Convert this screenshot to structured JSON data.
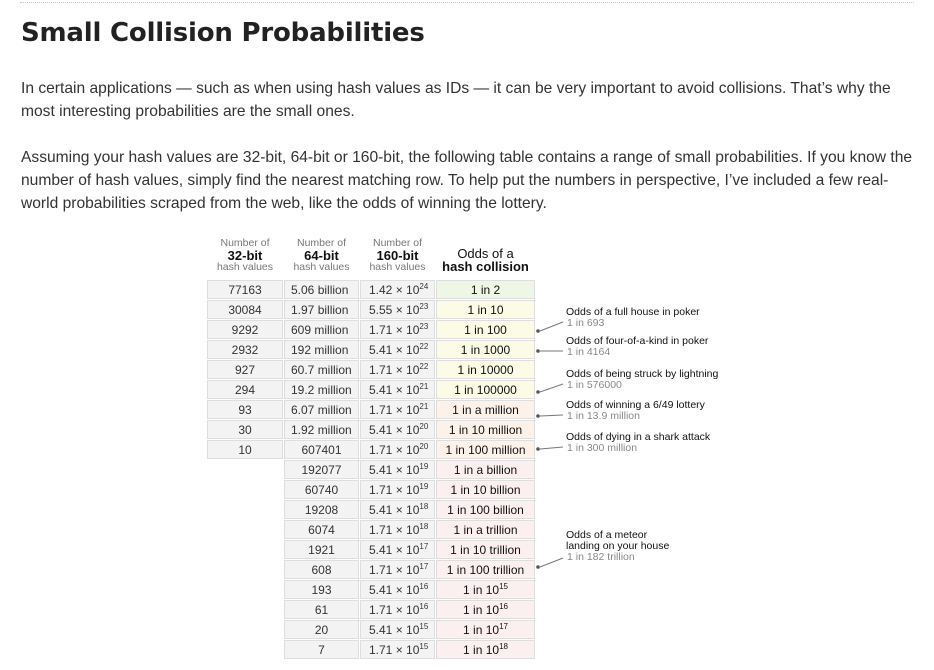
{
  "page": {
    "heading": "Small Collision Probabilities",
    "paragraph1": "In certain applications — such as when using hash values as IDs — it can be very important to avoid collisions. That’s why the most interesting probabilities are the small ones.",
    "paragraph2": "Assuming your hash values are 32-bit, 64-bit or 160-bit, the following table contains a range of small probabilities. If you know the number of hash values, simply find the nearest matching row. To help put the numbers in perspective, I’ve included a few real-world probabilities scraped from the web, like the odds of winning the lottery."
  },
  "table": {
    "headers": {
      "h32": {
        "top": "Number of",
        "bold": "32-bit",
        "bottom": "hash values"
      },
      "h64": {
        "top": "Number of",
        "bold": "64-bit",
        "bottom": "hash values"
      },
      "h160": {
        "top": "Number of",
        "bold": "160-bit",
        "bottom": "hash values"
      },
      "odds": {
        "top": "Odds of a",
        "bold": "hash collision"
      }
    },
    "times": "×",
    "rows": [
      {
        "b32": "77163",
        "b64": "5.06 billion",
        "b160": {
          "m": "1.42",
          "e": "24"
        },
        "odds": {
          "text": "1 in 2"
        }
      },
      {
        "b32": "30084",
        "b64": "1.97 billion",
        "b160": {
          "m": "5.55",
          "e": "23"
        },
        "odds": {
          "text": "1 in 10"
        }
      },
      {
        "b32": "9292",
        "b64": "609 million",
        "b160": {
          "m": "1.71",
          "e": "23"
        },
        "odds": {
          "text": "1 in 100"
        }
      },
      {
        "b32": "2932",
        "b64": "192 million",
        "b160": {
          "m": "5.41",
          "e": "22"
        },
        "odds": {
          "text": "1 in 1000"
        }
      },
      {
        "b32": "927",
        "b64": "60.7 million",
        "b160": {
          "m": "1.71",
          "e": "22"
        },
        "odds": {
          "text": "1 in 10000"
        }
      },
      {
        "b32": "294",
        "b64": "19.2 million",
        "b160": {
          "m": "5.41",
          "e": "21"
        },
        "odds": {
          "text": "1 in 100000"
        }
      },
      {
        "b32": "93",
        "b64": "6.07 million",
        "b160": {
          "m": "1.71",
          "e": "21"
        },
        "odds": {
          "text": "1 in a million"
        }
      },
      {
        "b32": "30",
        "b64": "1.92 million",
        "b160": {
          "m": "5.41",
          "e": "20"
        },
        "odds": {
          "text": "1 in 10 million"
        }
      },
      {
        "b32": "10",
        "b64": "607401",
        "b160": {
          "m": "1.71",
          "e": "20"
        },
        "odds": {
          "text": "1 in 100 million"
        }
      },
      {
        "b32": "",
        "b64": "192077",
        "b160": {
          "m": "5.41",
          "e": "19"
        },
        "odds": {
          "text": "1 in a billion"
        }
      },
      {
        "b32": "",
        "b64": "60740",
        "b160": {
          "m": "1.71",
          "e": "19"
        },
        "odds": {
          "text": "1 in 10 billion"
        }
      },
      {
        "b32": "",
        "b64": "19208",
        "b160": {
          "m": "5.41",
          "e": "18"
        },
        "odds": {
          "text": "1 in 100 billion"
        }
      },
      {
        "b32": "",
        "b64": "6074",
        "b160": {
          "m": "1.71",
          "e": "18"
        },
        "odds": {
          "text": "1 in a trillion"
        }
      },
      {
        "b32": "",
        "b64": "1921",
        "b160": {
          "m": "5.41",
          "e": "17"
        },
        "odds": {
          "text": "1 in 10 trillion"
        }
      },
      {
        "b32": "",
        "b64": "608",
        "b160": {
          "m": "1.71",
          "e": "17"
        },
        "odds": {
          "text": "1 in 100 trillion"
        }
      },
      {
        "b32": "",
        "b64": "193",
        "b160": {
          "m": "5.41",
          "e": "16"
        },
        "odds": {
          "text": "1 in 10",
          "sup": "15"
        }
      },
      {
        "b32": "",
        "b64": "61",
        "b160": {
          "m": "1.71",
          "e": "16"
        },
        "odds": {
          "text": "1 in 10",
          "sup": "16"
        }
      },
      {
        "b32": "",
        "b64": "20",
        "b160": {
          "m": "5.41",
          "e": "15"
        },
        "odds": {
          "text": "1 in 10",
          "sup": "17"
        }
      },
      {
        "b32": "",
        "b64": "7",
        "b160": {
          "m": "1.71",
          "e": "15"
        },
        "odds": {
          "text": "1 in 10",
          "sup": "18"
        }
      }
    ],
    "odds_colors": {
      "green": "#eef7e6",
      "yellow": "#fbfbe6",
      "peach": "#fdf2ea",
      "pink": "#fcefef"
    }
  },
  "annotations": [
    {
      "title": "Odds of a full house in poker",
      "sub": "1 in 693"
    },
    {
      "title": "Odds of four-of-a-kind in poker",
      "sub": "1 in 4164"
    },
    {
      "title": "Odds of being struck by lightning",
      "sub": "1 in 576000"
    },
    {
      "title": "Odds of winning a 6/49 lottery",
      "sub": "1 in 13.9 million"
    },
    {
      "title": "Odds of dying in a shark attack",
      "sub": "1 in 300 million"
    },
    {
      "title": "Odds of a meteor",
      "title2": "landing on your house",
      "sub": "1 in 182 trillion"
    }
  ]
}
